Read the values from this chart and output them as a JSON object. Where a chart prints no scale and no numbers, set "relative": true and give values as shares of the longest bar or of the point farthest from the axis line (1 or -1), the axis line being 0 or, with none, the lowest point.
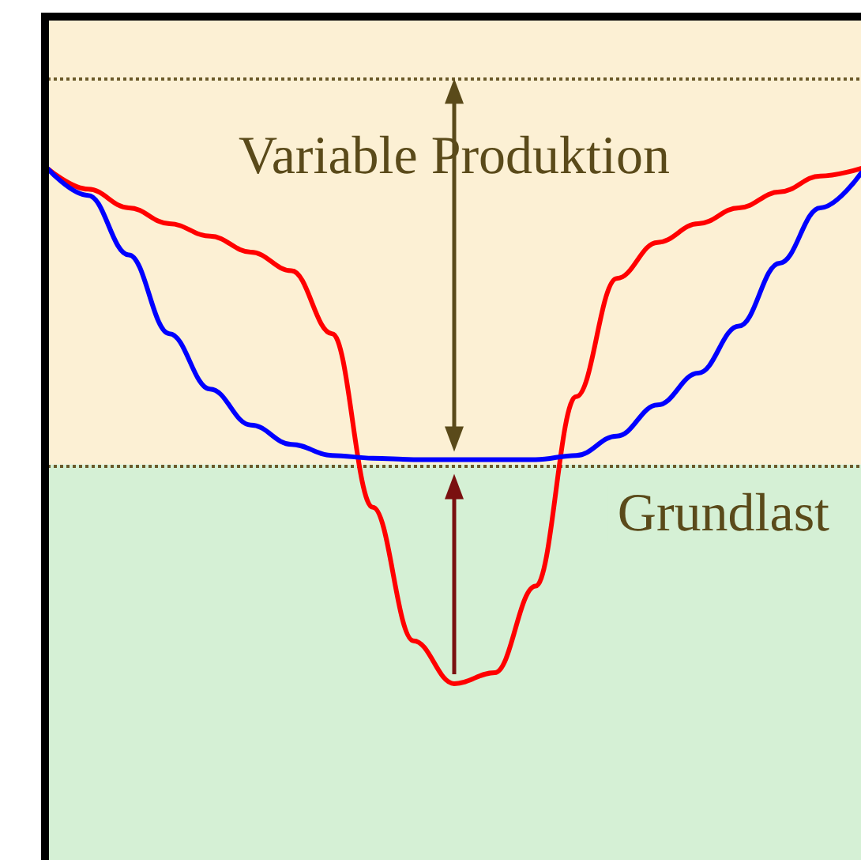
{
  "chart_data": {
    "type": "line",
    "relative": true,
    "categories": [
      null,
      null,
      null,
      null,
      null,
      null,
      null,
      null,
      null,
      null,
      null,
      null,
      null,
      null,
      null,
      null,
      null,
      null,
      null,
      null,
      null
    ],
    "series": [
      {
        "color": "#ff0000",
        "values": [
          1.0,
          0.97,
          0.943,
          0.92,
          0.902,
          0.879,
          0.852,
          0.761,
          0.51,
          0.317,
          0.255,
          0.271,
          0.396,
          0.67,
          0.841,
          0.893,
          0.92,
          0.943,
          0.966,
          0.989,
          1.0
        ]
      },
      {
        "color": "#0000ff",
        "values": [
          1.0,
          0.961,
          0.875,
          0.761,
          0.681,
          0.629,
          0.601,
          0.585,
          0.581,
          0.579,
          0.579,
          0.579,
          0.579,
          0.585,
          0.613,
          0.658,
          0.704,
          0.772,
          0.863,
          0.943,
          0.993
        ]
      }
    ],
    "bands": [
      {
        "axis": "y",
        "from": 0,
        "to": 0.572,
        "label": "Grundlast",
        "color": "#d5f0d5"
      },
      {
        "axis": "y",
        "from": 0.572,
        "to": 1.216,
        "label": "Variable Produktion",
        "color": "#fcf0d4"
      }
    ],
    "ref_lines": [
      {
        "axis": "y",
        "value": 0.572,
        "line_style": "dotted",
        "color": "#6b5a2a"
      },
      {
        "axis": "y",
        "value": 1.13,
        "line_style": "dotted",
        "color": "#6b5a2a"
      }
    ],
    "grid": false,
    "marker": "none",
    "line_style": "solid"
  }
}
